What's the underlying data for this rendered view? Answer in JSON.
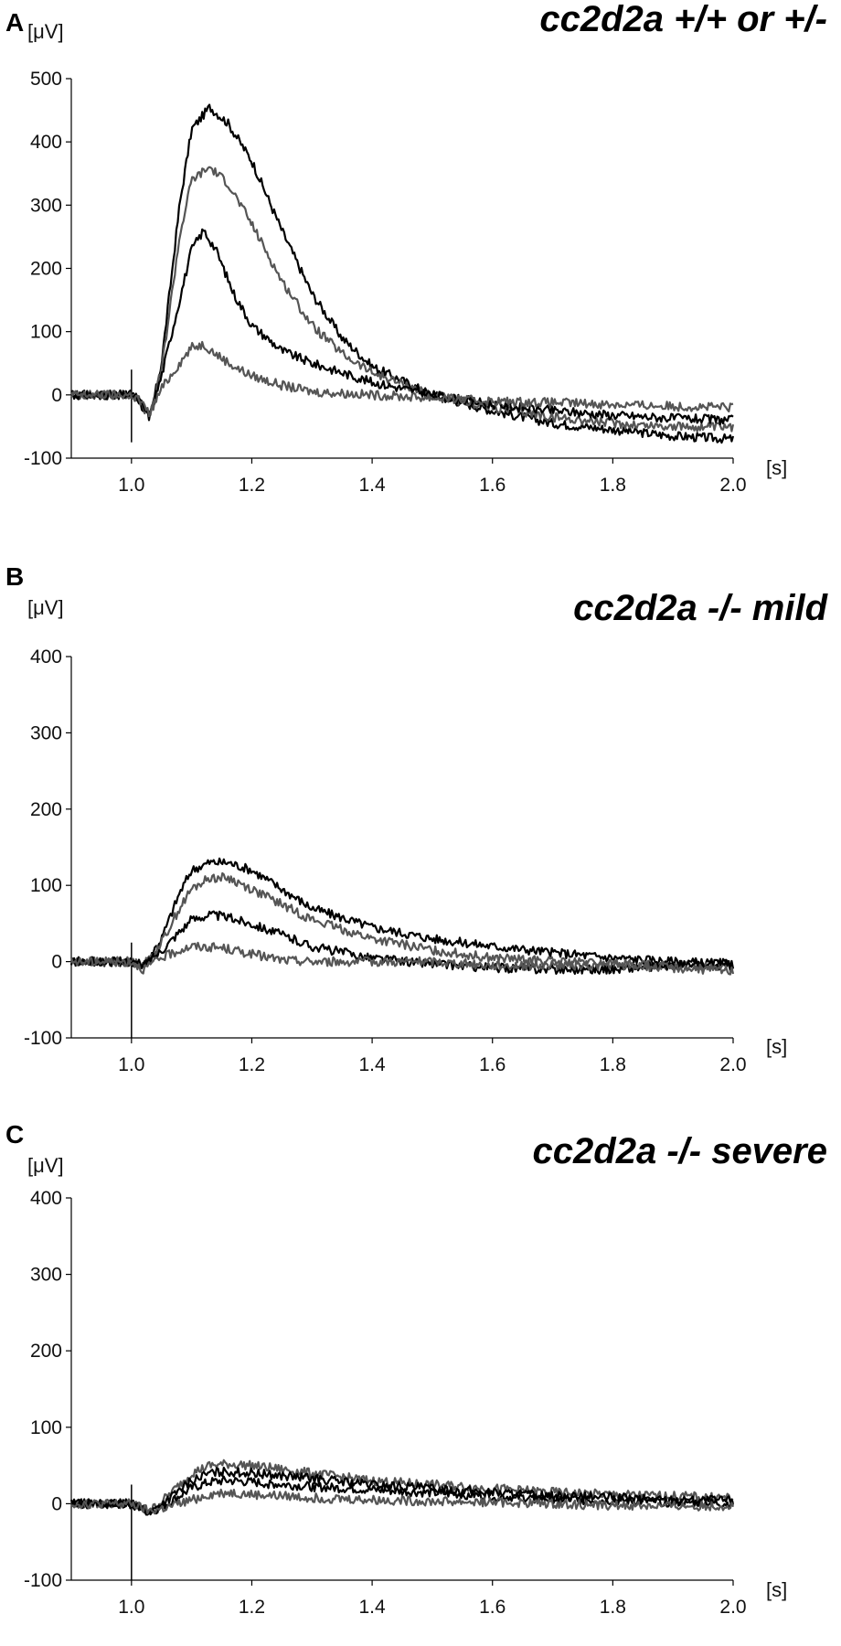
{
  "chart_data": [
    {
      "type": "line",
      "panel_label": "A",
      "title": "cc2d2a +/+ or +/-",
      "ylabel": "[μV]",
      "xlabel": "[s]",
      "xlim": [
        0.9,
        2.0
      ],
      "ylim": [
        -100,
        500
      ],
      "xticks": [
        "1.0",
        "1.2",
        "1.4",
        "1.6",
        "1.8",
        "2.0"
      ],
      "yticks": [
        "500",
        "400",
        "300",
        "200",
        "100",
        "0",
        "-100"
      ],
      "stimulus_time": 1.0,
      "series": [
        {
          "color": "#000000",
          "x": [
            0.9,
            1.0,
            1.01,
            1.03,
            1.05,
            1.08,
            1.1,
            1.13,
            1.16,
            1.2,
            1.25,
            1.3,
            1.35,
            1.4,
            1.5,
            1.6,
            1.7,
            1.8,
            1.9,
            2.0
          ],
          "values": [
            0,
            0,
            -5,
            -40,
            50,
            300,
            420,
            455,
            430,
            370,
            260,
            160,
            90,
            45,
            0,
            -25,
            -45,
            -55,
            -65,
            -70
          ]
        },
        {
          "color": "#555555",
          "x": [
            0.9,
            1.0,
            1.01,
            1.03,
            1.05,
            1.08,
            1.1,
            1.13,
            1.16,
            1.2,
            1.25,
            1.3,
            1.35,
            1.4,
            1.5,
            1.6,
            1.7,
            1.8,
            1.9,
            2.0
          ],
          "values": [
            0,
            0,
            -5,
            -35,
            40,
            250,
            340,
            360,
            335,
            270,
            180,
            110,
            65,
            35,
            0,
            -20,
            -35,
            -45,
            -50,
            -52
          ]
        },
        {
          "color": "#000000",
          "x": [
            0.9,
            1.0,
            1.01,
            1.03,
            1.05,
            1.08,
            1.1,
            1.12,
            1.14,
            1.17,
            1.2,
            1.25,
            1.3,
            1.35,
            1.4,
            1.5,
            1.6,
            1.7,
            1.8,
            1.9,
            2.0
          ],
          "values": [
            0,
            0,
            -5,
            -35,
            30,
            150,
            230,
            260,
            230,
            160,
            110,
            70,
            50,
            35,
            20,
            0,
            -15,
            -25,
            -32,
            -37,
            -40
          ]
        },
        {
          "color": "#555555",
          "x": [
            0.9,
            1.0,
            1.01,
            1.03,
            1.05,
            1.08,
            1.1,
            1.12,
            1.14,
            1.17,
            1.2,
            1.25,
            1.3,
            1.4,
            1.5,
            1.6,
            1.7,
            1.8,
            1.9,
            2.0
          ],
          "values": [
            0,
            0,
            -5,
            -30,
            10,
            50,
            75,
            80,
            65,
            45,
            30,
            15,
            5,
            0,
            -5,
            -10,
            -12,
            -15,
            -18,
            -20
          ]
        }
      ]
    },
    {
      "type": "line",
      "panel_label": "B",
      "title": "cc2d2a -/- mild",
      "ylabel": "[μV]",
      "xlabel": "[s]",
      "xlim": [
        0.9,
        2.0
      ],
      "ylim": [
        -100,
        400
      ],
      "xticks": [
        "1.0",
        "1.2",
        "1.4",
        "1.6",
        "1.8",
        "2.0"
      ],
      "yticks": [
        "400",
        "300",
        "200",
        "100",
        "0",
        "-100"
      ],
      "stimulus_time": 1.0,
      "series": [
        {
          "color": "#000000",
          "x": [
            0.9,
            1.0,
            1.02,
            1.05,
            1.08,
            1.1,
            1.13,
            1.16,
            1.2,
            1.25,
            1.3,
            1.4,
            1.5,
            1.6,
            1.7,
            1.8,
            1.9,
            2.0
          ],
          "values": [
            0,
            0,
            -5,
            30,
            90,
            120,
            130,
            130,
            120,
            95,
            70,
            45,
            30,
            20,
            12,
            5,
            0,
            -3
          ]
        },
        {
          "color": "#555555",
          "x": [
            0.9,
            1.0,
            1.02,
            1.05,
            1.08,
            1.1,
            1.13,
            1.16,
            1.2,
            1.25,
            1.3,
            1.4,
            1.5,
            1.6,
            1.7,
            1.8,
            1.9,
            2.0
          ],
          "values": [
            0,
            0,
            -5,
            25,
            70,
            95,
            110,
            110,
            95,
            75,
            55,
            30,
            15,
            5,
            0,
            -3,
            -5,
            -8
          ]
        },
        {
          "color": "#000000",
          "x": [
            0.9,
            1.0,
            1.02,
            1.05,
            1.08,
            1.1,
            1.13,
            1.16,
            1.2,
            1.25,
            1.3,
            1.4,
            1.5,
            1.6,
            1.7,
            1.8,
            1.9,
            2.0
          ],
          "values": [
            0,
            0,
            -5,
            15,
            40,
            55,
            62,
            58,
            50,
            35,
            20,
            5,
            -3,
            -8,
            -10,
            -10,
            -5,
            -5
          ]
        },
        {
          "color": "#555555",
          "x": [
            0.9,
            1.0,
            1.02,
            1.05,
            1.08,
            1.1,
            1.15,
            1.2,
            1.25,
            1.3,
            1.4,
            1.5,
            1.6,
            1.7,
            1.8,
            1.9,
            2.0
          ],
          "values": [
            0,
            0,
            -10,
            5,
            15,
            20,
            18,
            10,
            2,
            0,
            0,
            0,
            -5,
            -5,
            -5,
            -8,
            -12
          ]
        }
      ]
    },
    {
      "type": "line",
      "panel_label": "C",
      "title": "cc2d2a -/- severe",
      "ylabel": "[μV]",
      "xlabel": "[s]",
      "xlim": [
        0.9,
        2.0
      ],
      "ylim": [
        -100,
        400
      ],
      "xticks": [
        "1.0",
        "1.2",
        "1.4",
        "1.6",
        "1.8",
        "2.0"
      ],
      "yticks": [
        "400",
        "300",
        "200",
        "100",
        "0",
        "-100"
      ],
      "stimulus_time": 1.0,
      "series": [
        {
          "color": "#555555",
          "x": [
            0.9,
            1.0,
            1.03,
            1.06,
            1.1,
            1.13,
            1.16,
            1.2,
            1.3,
            1.4,
            1.5,
            1.6,
            1.7,
            1.8,
            1.9,
            2.0
          ],
          "values": [
            0,
            0,
            -10,
            10,
            40,
            50,
            52,
            50,
            40,
            30,
            25,
            20,
            15,
            12,
            10,
            8
          ]
        },
        {
          "color": "#000000",
          "x": [
            0.9,
            1.0,
            1.03,
            1.06,
            1.1,
            1.13,
            1.16,
            1.2,
            1.3,
            1.4,
            1.5,
            1.6,
            1.7,
            1.8,
            1.9,
            2.0
          ],
          "values": [
            0,
            0,
            -12,
            5,
            30,
            40,
            42,
            40,
            33,
            25,
            20,
            15,
            10,
            8,
            5,
            5
          ]
        },
        {
          "color": "#000000",
          "x": [
            0.9,
            1.0,
            1.03,
            1.06,
            1.1,
            1.13,
            1.16,
            1.2,
            1.3,
            1.4,
            1.5,
            1.6,
            1.7,
            1.8,
            1.9,
            2.0
          ],
          "values": [
            0,
            0,
            -12,
            0,
            20,
            28,
            30,
            28,
            22,
            18,
            14,
            10,
            6,
            4,
            2,
            0
          ]
        },
        {
          "color": "#555555",
          "x": [
            0.9,
            1.0,
            1.03,
            1.06,
            1.1,
            1.13,
            1.16,
            1.2,
            1.3,
            1.4,
            1.5,
            1.6,
            1.7,
            1.8,
            1.9,
            2.0
          ],
          "values": [
            0,
            0,
            -10,
            -5,
            5,
            12,
            15,
            12,
            8,
            5,
            3,
            2,
            0,
            -2,
            -3,
            -3
          ]
        }
      ]
    }
  ]
}
